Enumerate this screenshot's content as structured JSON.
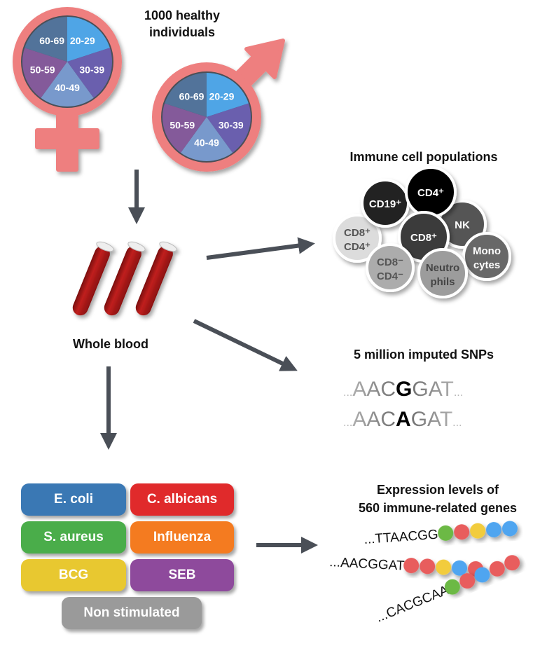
{
  "header": {
    "line1": "1000 healthy",
    "line2": "individuals"
  },
  "age_groups": [
    {
      "label": "20-29",
      "color": "#4fa5e6"
    },
    {
      "label": "30-39",
      "color": "#6a5fae"
    },
    {
      "label": "40-49",
      "color": "#7899cc"
    },
    {
      "label": "50-59",
      "color": "#845a9a"
    },
    {
      "label": "60-69",
      "color": "#52739a"
    }
  ],
  "symbol_color": "#ee7f7f",
  "arrow_color": "#4a4f57",
  "whole_blood": "Whole blood",
  "immune": {
    "title": "Immune cell populations",
    "cells": [
      {
        "l1": "CD8⁺",
        "l2": "CD4⁺",
        "color": "#dcdcdc",
        "text": "#555555"
      },
      {
        "l1": "CD19⁺",
        "l2": "",
        "color": "#222222",
        "text": "#ffffff"
      },
      {
        "l1": "NK",
        "l2": "",
        "color": "#555555",
        "text": "#ffffff"
      },
      {
        "l1": "CD4⁺",
        "l2": "",
        "color": "#000000",
        "text": "#ffffff"
      },
      {
        "l1": "CD8⁺",
        "l2": "",
        "color": "#3a3a3a",
        "text": "#ffffff"
      },
      {
        "l1": "Mono",
        "l2": "cytes",
        "color": "#676767",
        "text": "#ffffff"
      },
      {
        "l1": "CD8⁻",
        "l2": "CD4⁻",
        "color": "#acacac",
        "text": "#555555"
      },
      {
        "l1": "Neutro",
        "l2": "phils",
        "color": "#9c9c9c",
        "text": "#444444"
      }
    ]
  },
  "snps": {
    "title": "5 million imputed SNPs",
    "seq1": {
      "pre": "AAC",
      "snp": "G",
      "post": "GAT"
    },
    "seq2": {
      "pre": "AAC",
      "snp": "A",
      "post": "GAT"
    },
    "ellipsis": "..."
  },
  "stimuli": [
    {
      "label": "E. coli",
      "color": "#3a78b4"
    },
    {
      "label": "C. albicans",
      "color": "#e02a2b"
    },
    {
      "label": "S. aureus",
      "color": "#4aad4a"
    },
    {
      "label": "Influenza",
      "color": "#f47b20"
    },
    {
      "label": "BCG",
      "color": "#e8c830"
    },
    {
      "label": "SEB",
      "color": "#8e4a9c"
    },
    {
      "label": "Non stimulated",
      "color": "#9a9a9a"
    }
  ],
  "expression": {
    "title1": "Expression levels of",
    "title2": "560 immune-related genes",
    "rows": [
      {
        "seq": "...TTAACGG",
        "dots": [
          "#6cb944",
          "#e85d5d",
          "#f2cc3c",
          "#4fa5f0",
          "#4fa5f0"
        ]
      },
      {
        "seq": "...AACGGAT",
        "dots": [
          "#e85d5d",
          "#e85d5d",
          "#f2cc3c",
          "#4fa5f0",
          "#e85d5d"
        ]
      },
      {
        "seq": "...CACGCAA",
        "dots": [
          "#6cb944",
          "#e85d5d",
          "#4fa5f0",
          "#e85d5d",
          "#e85d5d"
        ]
      }
    ]
  }
}
